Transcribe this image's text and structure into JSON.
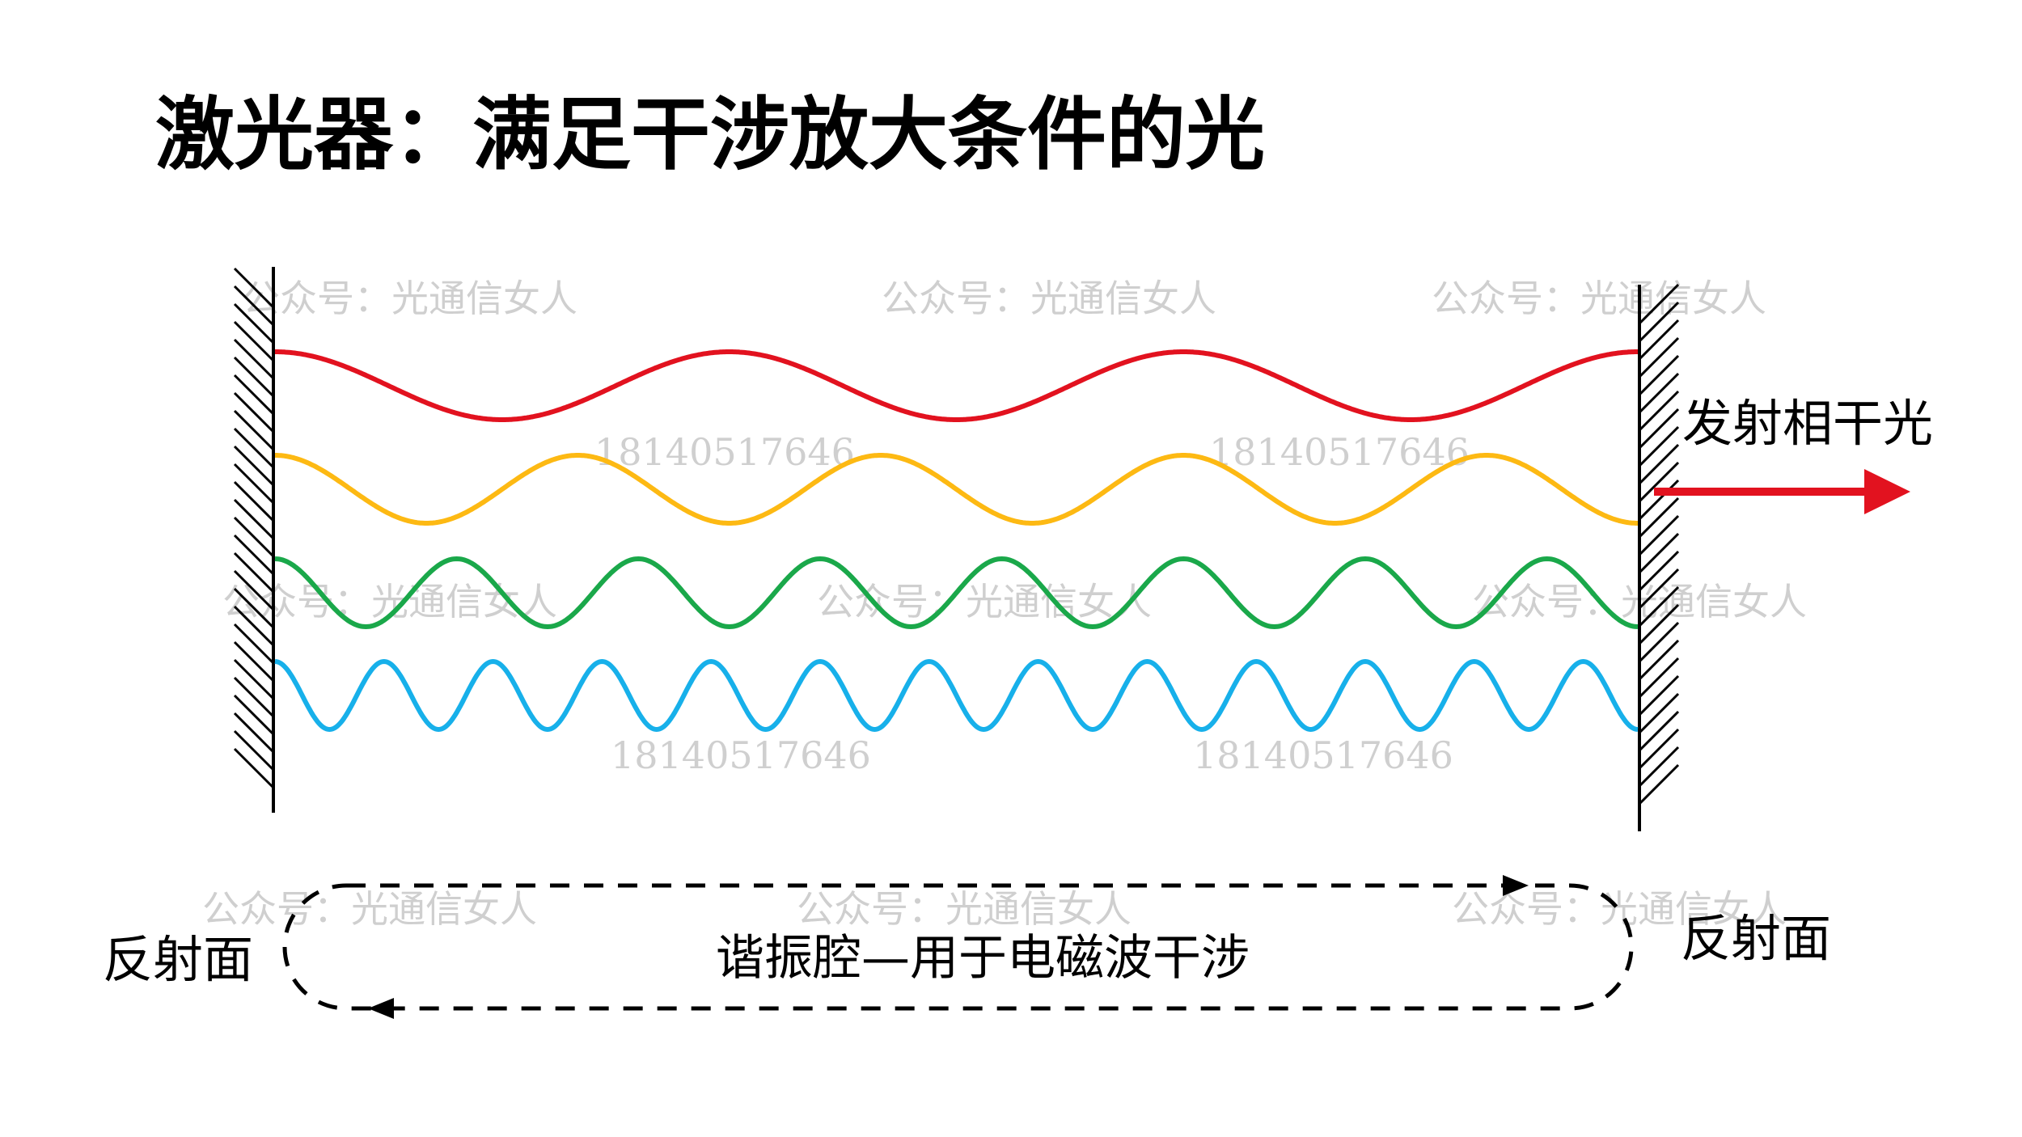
{
  "title": "激光器：满足干涉放大条件的光",
  "labels": {
    "output": "发射相干光",
    "left_mirror": "反射面",
    "right_mirror": "反射面",
    "cavity": "谐振腔—用于电磁波干涉"
  },
  "watermarks": {
    "name": "公众号：光通信女人",
    "number": "18140517646"
  },
  "waves": [
    {
      "color": "#e2121f",
      "cycles": 3
    },
    {
      "color": "#fdb913",
      "cycles": 4.5
    },
    {
      "color": "#1aa84a",
      "cycles": 7.5
    },
    {
      "color": "#17b0ea",
      "cycles": 12.5
    }
  ],
  "colors": {
    "arrow": "#e2121f",
    "ink": "#000000"
  }
}
